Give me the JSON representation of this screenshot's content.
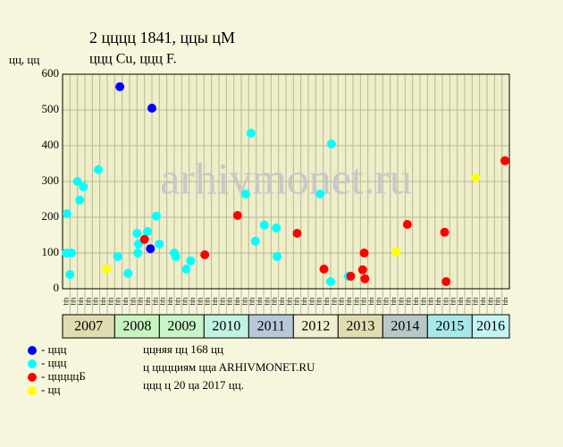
{
  "chart_data": {
    "type": "scatter",
    "title": "2 цццц 1841, ццы цM",
    "subtitle": "ццц Cu, ццц F.",
    "y_label": "цц, цц",
    "watermark": "arhivmonet.ru",
    "ylim": [
      0,
      600
    ],
    "yticks": [
      0,
      100,
      200,
      300,
      400,
      500,
      600
    ],
    "xlim": [
      0,
      60
    ],
    "grid": true,
    "years": [
      "2007",
      "2008",
      "2009",
      "2010",
      "2011",
      "2012",
      "2013",
      "2014",
      "2015",
      "2016"
    ],
    "x_labels": [
      "цц",
      "цц",
      "цц",
      "цц",
      "цц",
      "цц",
      "цц",
      "цц",
      "цц",
      "цц",
      "цц",
      "цц",
      "цц",
      "цц",
      "цц",
      "цц",
      "цц",
      "цц",
      "цц",
      "цц",
      "цц",
      "цц",
      "цц",
      "цц",
      "цц",
      "цц",
      "цц",
      "цц",
      "цц",
      "цц",
      "цц",
      "цц",
      "цц",
      "цц",
      "цц",
      "цц",
      "цц",
      "цц",
      "цц",
      "цц",
      "цц",
      "цц",
      "цц",
      "цц",
      "цц",
      "цц",
      "цц",
      "цц",
      "цц",
      "цц",
      "цц",
      "цц",
      "цц",
      "цц",
      "цц",
      "цц",
      "цц",
      "цц",
      "цц",
      "цц"
    ],
    "series": [
      {
        "name": "- ццц",
        "color": "#0000ff",
        "x": [
          7.7,
          12.0,
          11.8
        ],
        "values": [
          565,
          505,
          112
        ]
      },
      {
        "name": "- ццц",
        "color": "#00ffff",
        "x": [
          0.6,
          1.0,
          1.2,
          0.5,
          2.0,
          2.3,
          2.8,
          4.8,
          7.4,
          8.8,
          10.0,
          10.2,
          10.1,
          11.4,
          12.6,
          13.0,
          15.0,
          15.2,
          16.6,
          17.2,
          24.6,
          25.3,
          25.9,
          27.1,
          28.7,
          28.8,
          34.6,
          36.1,
          36.0,
          38.4
        ],
        "values": [
          210,
          40,
          100,
          100,
          300,
          248,
          285,
          333,
          90,
          43,
          155,
          125,
          100,
          160,
          203,
          125,
          100,
          90,
          55,
          78,
          265,
          435,
          133,
          178,
          170,
          90,
          265,
          405,
          20,
          35
        ]
      },
      {
        "name": "- цццццБ",
        "color": "#ff0000",
        "x": [
          11.0,
          19.1,
          23.5,
          31.5,
          35.1,
          38.7,
          40.5,
          40.3,
          40.6,
          46.3,
          51.3,
          51.5,
          59.4
        ],
        "values": [
          138,
          95,
          205,
          155,
          55,
          35,
          100,
          53,
          28,
          180,
          158,
          20,
          358
        ]
      },
      {
        "name": "- цц",
        "color": "#ffff00",
        "x": [
          5.9,
          44.8,
          55.5
        ],
        "values": [
          55,
          103,
          310
        ]
      }
    ],
    "notes": [
      "ццняя цц 168 цц",
      "ц цццциям ццa ARHIVMONET.RU",
      "ццц ц 20 цa 2017 цц."
    ]
  }
}
